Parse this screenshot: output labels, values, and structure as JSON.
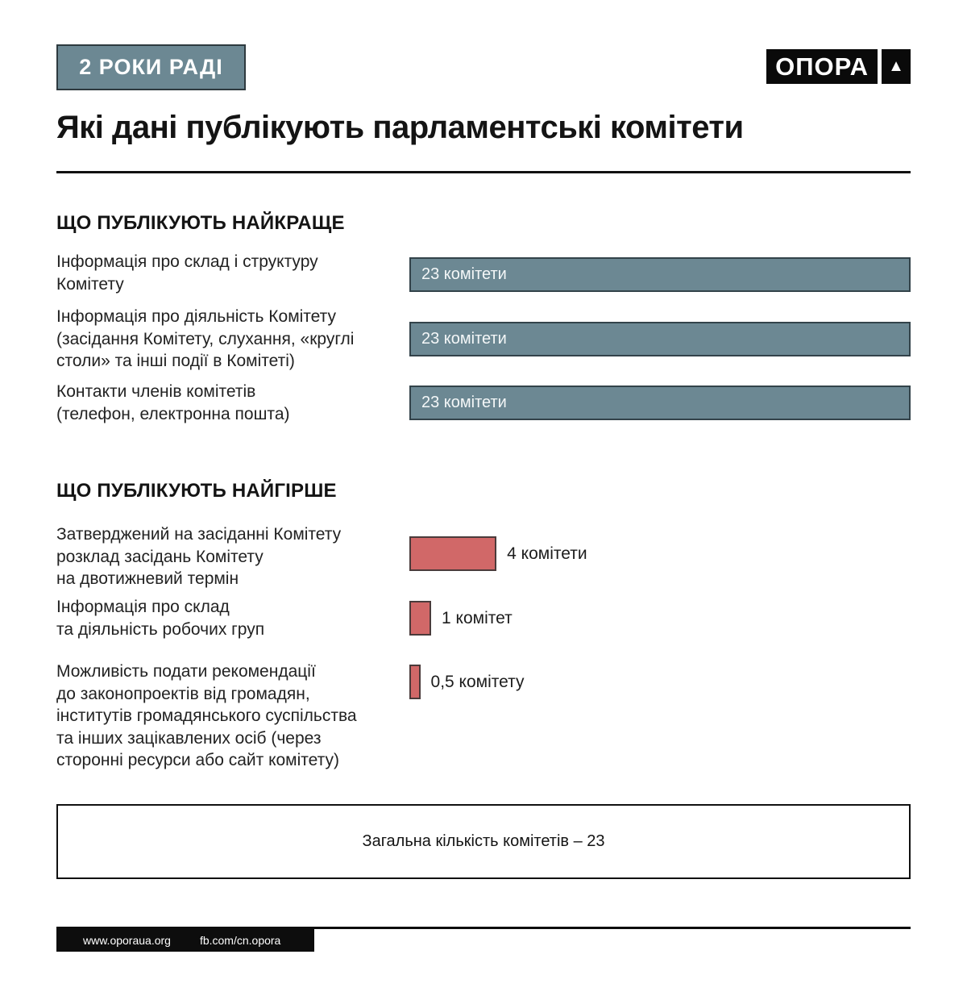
{
  "badge": {
    "label": "2 РОКИ РАДІ"
  },
  "logo": {
    "wordmark": "ОПОРА",
    "mark": "▲"
  },
  "title": "Які дані публікують парламентські комітети",
  "chart_data": [
    {
      "type": "bar",
      "orientation": "horizontal",
      "title": "ЩО ПУБЛІКУЮТЬ НАЙКРАЩЕ",
      "xlim": [
        0,
        23
      ],
      "bar_color": "#6c8893",
      "bar_border_color": "#33434a",
      "value_label_position": "inside",
      "categories": [
        "Інформація про склад і структуру\nКомітету",
        "Інформація про діяльність Комітету\n(засідання Комітету, слухання, «круглі\nстоли» та інші події в Комітеті)",
        "Контакти членів комітетів\n(телефон, електронна пошта)"
      ],
      "values": [
        23,
        23,
        23
      ],
      "value_labels": [
        "23 комітети",
        "23 комітети",
        "23 комітети"
      ]
    },
    {
      "type": "bar",
      "orientation": "horizontal",
      "title": "ЩО ПУБЛІКУЮТЬ НАЙГІРШЕ",
      "xlim": [
        0,
        23
      ],
      "bar_color": "#d16868",
      "bar_border_color": "#4a3b3b",
      "value_label_position": "outside",
      "categories": [
        "Затверджений на засіданні Комітету\nрозклад засідань Комітету\nна двотижневий термін",
        "Інформація про склад\nта діяльність робочих груп",
        "Можливість подати рекомендації\nдо законопроектів від громадян,\nінститутів громадянського суспільства\nта інших зацікавлених осіб (через\nсторонні ресурси або сайт комітету)"
      ],
      "values": [
        4,
        1,
        0.5
      ],
      "value_labels": [
        "4 комітети",
        "1 комітет",
        "0,5 комітету"
      ]
    }
  ],
  "summary": {
    "text": "Загальна кількість комітетів – 23"
  },
  "footer": {
    "website": "www.oporaua.org",
    "facebook": "fb.com/cn.opora"
  }
}
